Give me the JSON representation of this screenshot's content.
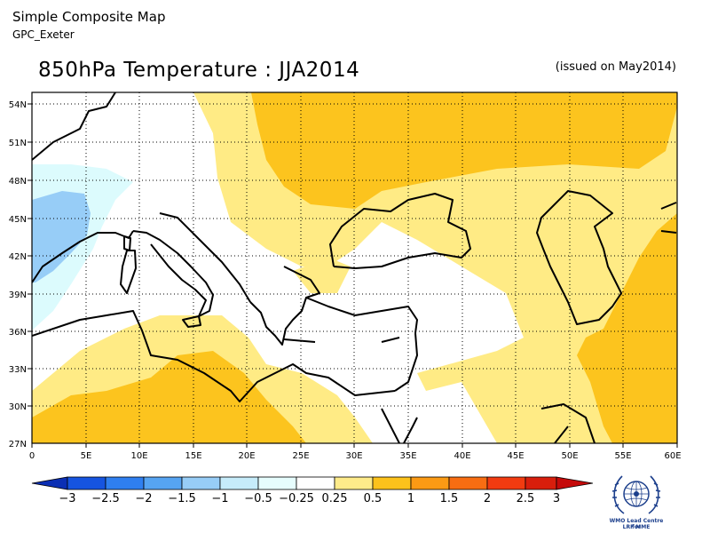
{
  "header": {
    "title": "Simple Composite Map",
    "subtitle": "GPC_Exeter"
  },
  "map": {
    "title": "850hPa Temperature : JJA2014",
    "issued": "(issued on May2014)",
    "region": "Mediterranean / Middle East",
    "lat_ticks": [
      "54N",
      "51N",
      "48N",
      "45N",
      "42N",
      "39N",
      "36N",
      "33N",
      "30N",
      "27N"
    ],
    "lon_ticks": [
      "0",
      "5E",
      "10E",
      "15E",
      "20E",
      "25E",
      "30E",
      "35E",
      "40E",
      "45E",
      "50E",
      "55E",
      "60E"
    ],
    "grid": true
  },
  "colorbar": {
    "labels": [
      "−3",
      "−2.5",
      "−2",
      "−1.5",
      "−1",
      "−0.5",
      "−0.25",
      "0.25",
      "0.5",
      "1",
      "1.5",
      "2",
      "2.5",
      "3"
    ],
    "colors": [
      "#0b2fb4",
      "#1654e0",
      "#2f7ff0",
      "#56a4f2",
      "#97cdf7",
      "#dcfbfd",
      "#ffffff",
      "#feeb8a",
      "#fcc21b",
      "#fb9a14",
      "#f86d12",
      "#f23b10",
      "#c50a0a"
    ]
  },
  "palette": {
    "pos_light": "#ffeb85",
    "pos_mid": "#fcc41e",
    "neg_light": "#dcfbfd",
    "neg_mid": "#97cdf7",
    "coast": "#000000"
  },
  "logo": {
    "line1": "WMO Lead Centre for",
    "line2": "LRF MME"
  }
}
